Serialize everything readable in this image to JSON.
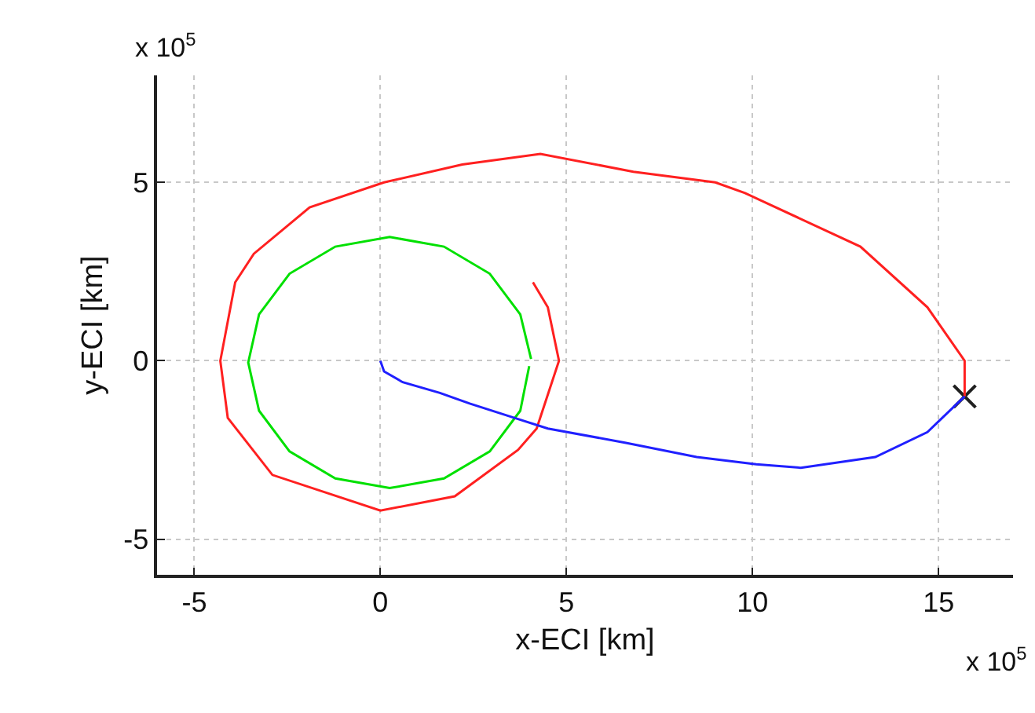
{
  "chart_data": {
    "type": "line",
    "xlabel": "x-ECI [km]",
    "ylabel": "y-ECI [km]",
    "annotations": [
      "x 10$^{5}$",
      "x 10$^{5}$"
    ],
    "xlim": [
      -6,
      17
    ],
    "xticks": [
      -5,
      0,
      5,
      10,
      15
    ],
    "ylim": [
      -6,
      8
    ],
    "yticks": [
      -5,
      0,
      5
    ],
    "grid": true,
    "line_style": "solid",
    "series": [
      {
        "color": "#00e000",
        "x": [
          4.05,
          3.76,
          2.94,
          1.71,
          0.25,
          -1.21,
          -2.44,
          -3.26,
          -3.55,
          -3.26,
          -2.44,
          -1.21,
          0.25,
          1.71,
          2.94,
          3.76,
          4.0
        ],
        "values": [
          0.05,
          1.3,
          2.44,
          3.2,
          3.47,
          3.2,
          2.44,
          1.3,
          -0.05,
          -1.4,
          -2.54,
          -3.3,
          -3.57,
          -3.3,
          -2.54,
          -1.4,
          -0.15
        ]
      },
      {
        "color": "#ff2020",
        "x": [
          4.1,
          4.5,
          4.8,
          4.2,
          3.7,
          2.0,
          0,
          -2.9,
          -4.1,
          -4.3,
          -3.9,
          -3.4,
          -1.9,
          0.1,
          2.2,
          4.3,
          6.8,
          9.0,
          9.8,
          12.9,
          14.7,
          15.7,
          15.7
        ],
        "values": [
          2.2,
          1.5,
          0,
          -1.9,
          -2.5,
          -3.8,
          -4.2,
          -3.2,
          -1.6,
          0,
          2.2,
          3.0,
          4.3,
          5.0,
          5.5,
          5.8,
          5.3,
          5.0,
          4.7,
          3.2,
          1.5,
          0,
          -1.0
        ]
      },
      {
        "color": "#2020ff",
        "x": [
          0,
          0.1,
          0.6,
          1.6,
          2.4,
          3.6,
          4.5,
          6.6,
          8.5,
          10.1,
          11.3,
          13.3,
          14.7,
          15.5,
          15.7
        ],
        "values": [
          0,
          -0.3,
          -0.6,
          -0.9,
          -1.2,
          -1.6,
          -1.9,
          -2.3,
          -2.7,
          -2.9,
          -3.0,
          -2.7,
          -2.0,
          -1.2,
          -1.0
        ]
      },
      {
        "type": "scatter",
        "marker": "cross",
        "color": "#202020",
        "x": [
          15.7
        ],
        "values": [
          -1.0
        ]
      }
    ]
  }
}
